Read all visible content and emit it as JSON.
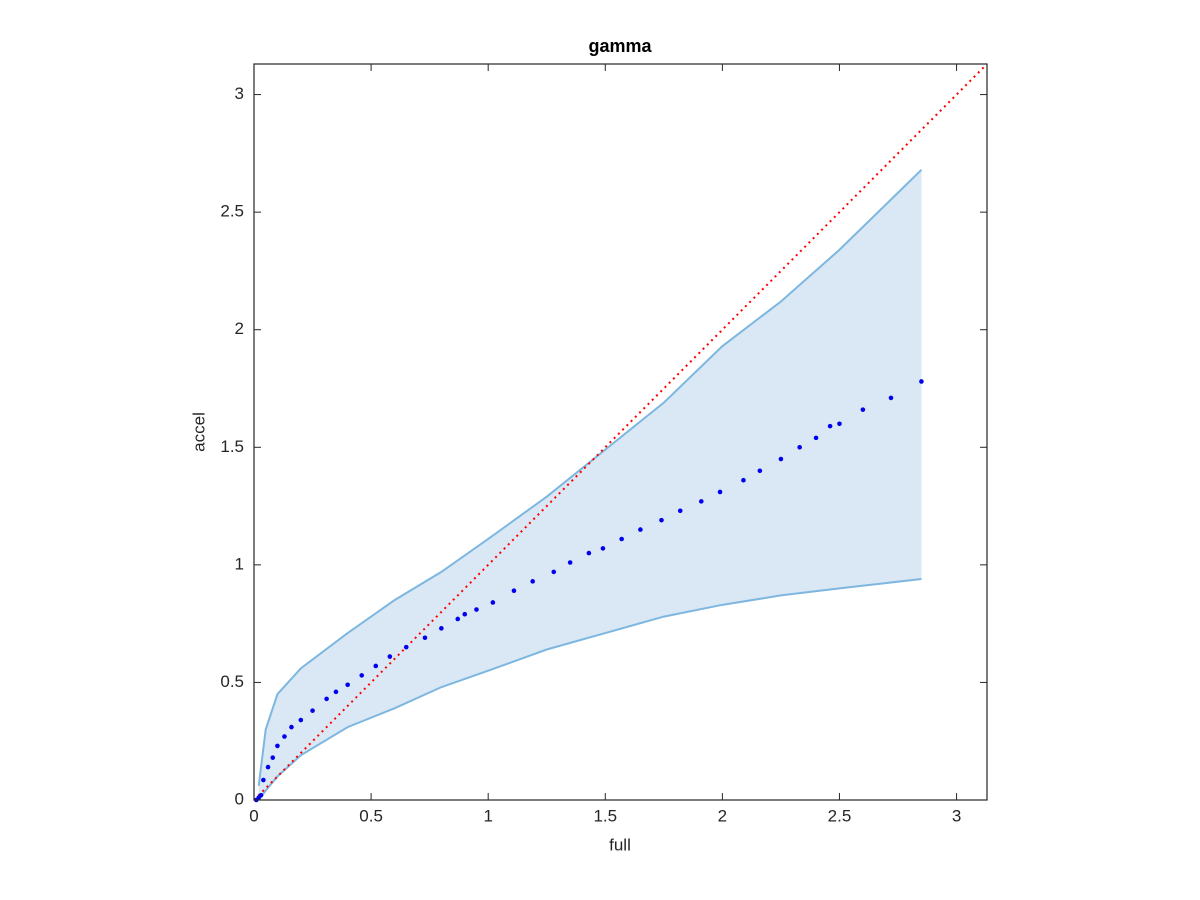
{
  "chart_data": {
    "type": "scatter",
    "title": "gamma",
    "x_label": "full",
    "y_label": "accel",
    "xlim": [
      0,
      3.13
    ],
    "ylim": [
      0,
      3.13
    ],
    "xticks": [
      0,
      0.5,
      1,
      1.5,
      2,
      2.5,
      3
    ],
    "yticks": [
      0,
      0.5,
      1,
      1.5,
      2,
      2.5,
      3
    ],
    "box": true,
    "band": {
      "color": "#7db7e0",
      "fill": "#d9e8f4",
      "x": [
        0.02,
        0.05,
        0.1,
        0.2,
        0.4,
        0.6,
        0.8,
        1.0,
        1.25,
        1.5,
        1.75,
        2.0,
        2.25,
        2.5,
        2.85
      ],
      "upper": [
        0.06,
        0.3,
        0.45,
        0.56,
        0.71,
        0.85,
        0.97,
        1.11,
        1.29,
        1.49,
        1.69,
        1.93,
        2.12,
        2.34,
        2.68
      ],
      "lower": [
        0,
        0.04,
        0.1,
        0.19,
        0.31,
        0.39,
        0.48,
        0.55,
        0.64,
        0.71,
        0.78,
        0.83,
        0.87,
        0.9,
        0.94
      ]
    },
    "reference": {
      "color": "#ff0000",
      "x": [
        0,
        3.13
      ],
      "y": [
        0,
        3.13
      ]
    },
    "points": {
      "color": "#0000ee",
      "x": [
        0.01,
        0.02,
        0.03,
        0.04,
        0.06,
        0.08,
        0.1,
        0.13,
        0.16,
        0.2,
        0.25,
        0.31,
        0.35,
        0.4,
        0.46,
        0.52,
        0.58,
        0.65,
        0.73,
        0.8,
        0.87,
        0.9,
        0.95,
        1.02,
        1.11,
        1.19,
        1.28,
        1.35,
        1.43,
        1.49,
        1.57,
        1.65,
        1.74,
        1.82,
        1.91,
        1.99,
        2.09,
        2.16,
        2.25,
        2.33,
        2.4,
        2.46,
        2.5,
        2.6,
        2.72,
        2.85
      ],
      "y": [
        0,
        0.01,
        0.02,
        0.085,
        0.14,
        0.18,
        0.23,
        0.27,
        0.31,
        0.34,
        0.38,
        0.43,
        0.46,
        0.49,
        0.53,
        0.57,
        0.61,
        0.65,
        0.69,
        0.73,
        0.77,
        0.79,
        0.81,
        0.84,
        0.89,
        0.93,
        0.97,
        1.01,
        1.05,
        1.07,
        1.11,
        1.15,
        1.19,
        1.23,
        1.27,
        1.31,
        1.36,
        1.4,
        1.45,
        1.5,
        1.54,
        1.59,
        1.6,
        1.66,
        1.71,
        1.78
      ]
    }
  }
}
